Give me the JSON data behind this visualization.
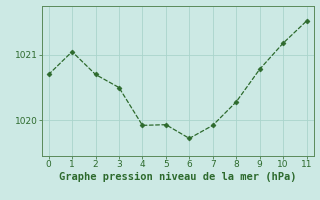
{
  "x": [
    0,
    1,
    2,
    3,
    4,
    5,
    6,
    7,
    8,
    9,
    10,
    11
  ],
  "y": [
    1020.7,
    1021.05,
    1020.7,
    1020.5,
    1019.92,
    1019.93,
    1019.72,
    1019.92,
    1020.28,
    1020.78,
    1021.18,
    1021.52
  ],
  "line_color": "#2d6a2d",
  "marker": "D",
  "marker_size": 2.5,
  "bg_color": "#cce9e4",
  "grid_color": "#aad4cc",
  "xlabel": "Graphe pression niveau de la mer (hPa)",
  "xlabel_color": "#2d6a2d",
  "ytick_labels": [
    "1020",
    "1021"
  ],
  "ytick_vals": [
    1020,
    1021
  ],
  "ylim": [
    1019.45,
    1021.75
  ],
  "xlim": [
    -0.3,
    11.3
  ],
  "xticks": [
    0,
    1,
    2,
    3,
    4,
    5,
    6,
    7,
    8,
    9,
    10,
    11
  ],
  "tick_color": "#2d6a2d",
  "spine_color": "#5a8a5a",
  "tick_fontsize": 6.5,
  "xlabel_fontsize": 7.5
}
